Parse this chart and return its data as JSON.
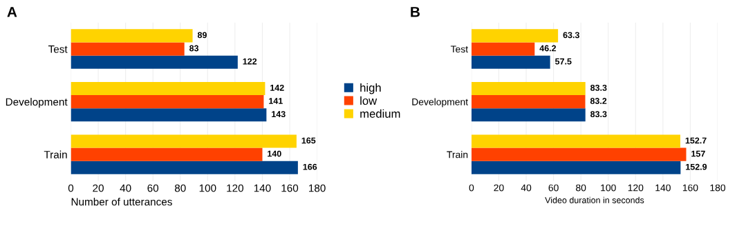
{
  "chart_data": [
    {
      "type": "bar",
      "orientation": "horizontal",
      "title": "A",
      "xlabel": "Number of utterances",
      "categories": [
        "Test",
        "Development",
        "Train"
      ],
      "xlim": [
        0,
        180
      ],
      "xticks": [
        0,
        20,
        40,
        60,
        80,
        100,
        120,
        140,
        160,
        180
      ],
      "grid": "x",
      "legend": "right",
      "data_labels": true,
      "series": [
        {
          "name": "high",
          "color": "#004389",
          "values": [
            122,
            143,
            166
          ]
        },
        {
          "name": "low",
          "color": "#ff4100",
          "values": [
            83,
            141,
            140
          ]
        },
        {
          "name": "medium",
          "color": "#ffd300",
          "values": [
            89,
            142,
            165
          ]
        }
      ]
    },
    {
      "type": "bar",
      "orientation": "horizontal",
      "title": "B",
      "xlabel": "Video duration in seconds",
      "categories": [
        "Test",
        "Development",
        "Train"
      ],
      "xlim": [
        0,
        180
      ],
      "xticks": [
        0,
        20,
        40,
        60,
        80,
        100,
        120,
        140,
        160,
        180
      ],
      "grid": "x",
      "data_labels": true,
      "series": [
        {
          "color": "#004389",
          "values": [
            57.5,
            83.3,
            152.9
          ]
        },
        {
          "color": "#ff4100",
          "values": [
            46.2,
            83.2,
            157
          ]
        },
        {
          "color": "#ffd300",
          "values": [
            63.3,
            83.3,
            152.7
          ]
        }
      ]
    }
  ]
}
